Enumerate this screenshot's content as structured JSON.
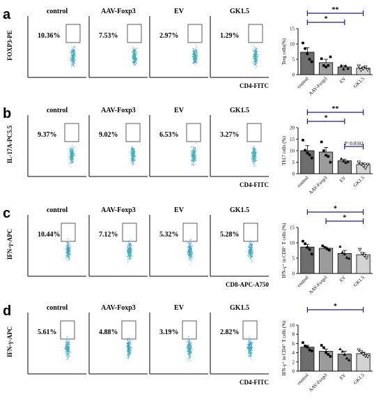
{
  "panels": [
    {
      "label": "a",
      "flow": {
        "titles": [
          "control",
          "AAV-Foxp3",
          "EV",
          "GK1.5"
        ],
        "percents": [
          "10.36%",
          "7.53%",
          "2.97%",
          "1.29%"
        ],
        "ylabel": "FOXP3-PE",
        "xlabel": "CD4-FITC"
      },
      "bar_ylabel": "Treg cells(%)",
      "sig": [
        {
          "from": 0,
          "to": 3,
          "text": "**"
        },
        {
          "from": 0,
          "to": 2,
          "text": "*"
        }
      ]
    },
    {
      "label": "b",
      "flow": {
        "titles": [
          "control",
          "AAV-Foxp3",
          "EV",
          "GK1.5"
        ],
        "percents": [
          "9.37%",
          "9.02%",
          "6.53%",
          "3.27%"
        ],
        "ylabel": "IL-17A-PC5.5",
        "xlabel": "CD4-FITC"
      },
      "bar_ylabel": "Th17 cells (%)",
      "sig": [
        {
          "from": 0,
          "to": 3,
          "text": "**"
        },
        {
          "from": 0,
          "to": 2,
          "text": "*"
        },
        {
          "from": 2,
          "to": 3,
          "text": "P=0.0502"
        }
      ]
    },
    {
      "label": "c",
      "flow": {
        "titles": [
          "control",
          "AAV-Foxp3",
          "EV",
          "GK1.5"
        ],
        "percents": [
          "10.44%",
          "7.12%",
          "5.32%",
          "5.28%"
        ],
        "ylabel": "IFN-γ-APC",
        "xlabel": "CD8-APC-A750"
      },
      "bar_ylabel": "IFN-γ⁺ in CD8⁺ T cells (%)",
      "sig": [
        {
          "from": 0,
          "to": 3,
          "text": "*"
        },
        {
          "from": 1,
          "to": 3,
          "text": "*"
        }
      ]
    },
    {
      "label": "d",
      "flow": {
        "titles": [
          "control",
          "AAV-Foxp3",
          "EV",
          "GK1.5"
        ],
        "percents": [
          "5.61%",
          "4.88%",
          "3.19%",
          "2.82%"
        ],
        "ylabel": "IFN-γ-APC",
        "xlabel": "CD4-FITC"
      },
      "bar_ylabel": "IFN-γ⁺ in CD4⁺ T cells (%)",
      "sig": [
        {
          "from": 0,
          "to": 3,
          "text": "*"
        }
      ]
    }
  ],
  "colors": {
    "bars": [
      "#6d6d6d",
      "#9b9b9b",
      "#8a8a8a",
      "#d2d2d2"
    ],
    "dots": "#3a9ad9",
    "dots_dense": "#2fb8a6",
    "sig_line": "#1a1a7a"
  },
  "chart_data": [
    {
      "type": "bar",
      "title": "",
      "xlabel": "",
      "ylabel": "Treg cells(%)",
      "categories": [
        "control",
        "AAV-Foxp3",
        "EV",
        "GK1.5"
      ],
      "values": [
        7.3,
        3.9,
        2.5,
        2.1
      ],
      "errors": [
        1.5,
        1.1,
        0.5,
        0.4
      ],
      "points": [
        [
          10.3,
          8.5,
          6.8,
          5.0,
          4.2
        ],
        [
          5.2,
          3.0,
          2.5,
          3.0,
          5.8
        ],
        [
          3.0,
          1.8,
          2.8,
          2.0
        ],
        [
          2.8,
          1.5,
          2.0,
          2.5,
          1.6
        ]
      ],
      "markers": [
        "circle",
        "square",
        "triangle",
        "triangle-down"
      ],
      "ylim": [
        0,
        15
      ],
      "yticks": [
        0,
        5,
        10,
        15
      ]
    },
    {
      "type": "bar",
      "title": "",
      "xlabel": "",
      "ylabel": "Th17 cells (%)",
      "categories": [
        "control",
        "AAV-Foxp3",
        "EV",
        "GK1.5"
      ],
      "values": [
        10,
        9.4,
        5.6,
        4.0
      ],
      "errors": [
        2.2,
        2.0,
        0.7,
        0.7
      ],
      "points": [
        [
          14.6,
          10.2,
          9.0,
          8.2,
          6.8
        ],
        [
          13.8,
          10.0,
          8.0,
          7.5,
          5.0
        ],
        [
          6.5,
          5.5,
          4.8,
          5.2
        ],
        [
          5.0,
          4.2,
          3.5,
          2.5,
          4.0
        ]
      ],
      "markers": [
        "circle",
        "square",
        "triangle",
        "triangle-down"
      ],
      "ylim": [
        0,
        20
      ],
      "yticks": [
        0,
        5,
        10,
        15,
        20
      ]
    },
    {
      "type": "bar",
      "title": "",
      "xlabel": "",
      "ylabel": "IFN-γ⁺ in CD8⁺ T cells (%)",
      "categories": [
        "control",
        "AAV-Foxp3",
        "EV",
        "GK1.5"
      ],
      "values": [
        8.6,
        8.2,
        6.5,
        6.1
      ],
      "errors": [
        0.9,
        0.4,
        1.0,
        0.6
      ],
      "points": [
        [
          10.5,
          9.7,
          8.5,
          7.8,
          6.3
        ],
        [
          9.0,
          8.5,
          8.0,
          7.6
        ],
        [
          8.8,
          6.9,
          6.3,
          5.2,
          4.9
        ],
        [
          7.8,
          6.5,
          5.9,
          5.1
        ]
      ],
      "markers": [
        "circle",
        "square",
        "triangle",
        "triangle-down"
      ],
      "ylim": [
        0,
        15
      ],
      "yticks": [
        0,
        5,
        10,
        15
      ]
    },
    {
      "type": "bar",
      "title": "",
      "xlabel": "",
      "ylabel": "IFN-γ⁺ in CD4⁺ T cells (%)",
      "categories": [
        "control",
        "AAV-Foxp3",
        "EV",
        "GK1.5"
      ],
      "values": [
        5.2,
        4.3,
        3.7,
        3.8
      ],
      "errors": [
        0.4,
        0.5,
        0.6,
        0.3
      ],
      "points": [
        [
          6.2,
          5.5,
          5.2,
          4.6,
          4.4
        ],
        [
          5.6,
          5.1,
          4.0,
          3.6,
          3.2
        ],
        [
          4.8,
          4.3,
          3.6,
          2.8,
          2.4
        ],
        [
          4.6,
          4.2,
          3.7,
          3.3,
          3.2
        ]
      ],
      "markers": [
        "circle",
        "square",
        "triangle",
        "triangle-down"
      ],
      "ylim": [
        0,
        10
      ],
      "yticks": [
        0,
        2,
        4,
        6,
        8,
        10
      ]
    }
  ]
}
